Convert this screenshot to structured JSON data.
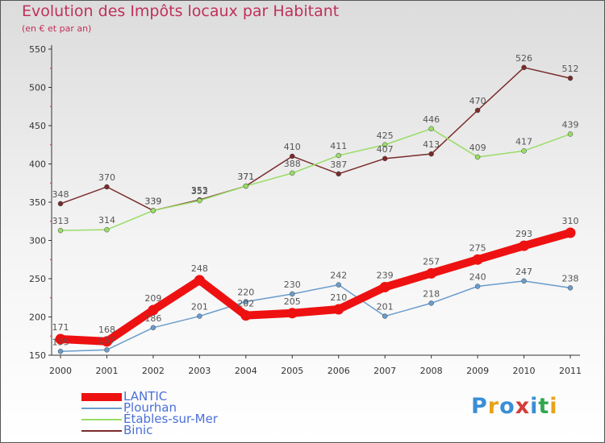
{
  "title": "Evolution des Impôts locaux par Habitant",
  "subtitle": "(en € et par an)",
  "logo": {
    "text": "Proxiti",
    "colors": [
      "#3a8fd6",
      "#e8a21a",
      "#3a8fd6",
      "#d63a3a",
      "#3a8fd6",
      "#2fa84f",
      "#e8a21a"
    ]
  },
  "chart_data": {
    "type": "line",
    "x": [
      2000,
      2001,
      2002,
      2003,
      2004,
      2005,
      2006,
      2007,
      2008,
      2009,
      2010,
      2011
    ],
    "ylim": [
      150,
      550
    ],
    "yticks": [
      150,
      200,
      250,
      300,
      350,
      400,
      450,
      500,
      550
    ],
    "grid": false,
    "legend": "bottom-left",
    "series": [
      {
        "name": "LANTIC",
        "color": "#ee1111",
        "values": [
          171,
          168,
          209,
          248,
          202,
          205,
          210,
          239,
          257,
          275,
          293,
          310
        ]
      },
      {
        "name": "Plourhan",
        "color": "#6a9ccc",
        "values": [
          155,
          157,
          186,
          201,
          220,
          230,
          242,
          201,
          218,
          240,
          247,
          238
        ]
      },
      {
        "name": "Étables-sur-Mer",
        "color": "#99dd66",
        "values": [
          313,
          314,
          339,
          352,
          371,
          388,
          411,
          425,
          446,
          409,
          417,
          439
        ]
      },
      {
        "name": "Binic",
        "color": "#7a2a2a",
        "values": [
          348,
          370,
          339,
          353,
          371,
          410,
          387,
          407,
          413,
          470,
          526,
          512
        ]
      }
    ]
  }
}
